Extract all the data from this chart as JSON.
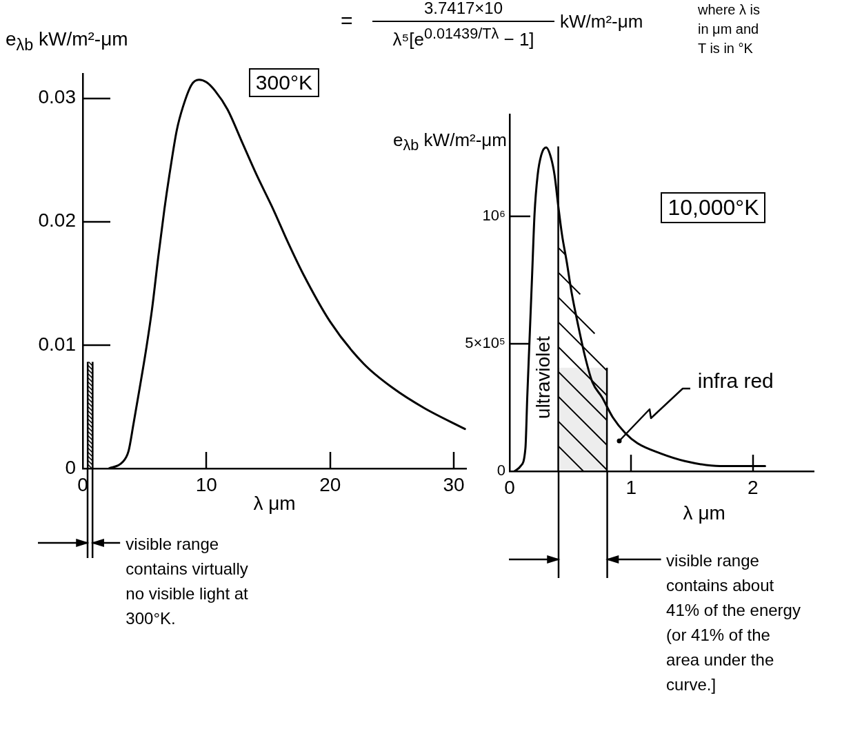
{
  "chart_data": [
    {
      "type": "line",
      "title": "300°K",
      "xlabel": "λ μm",
      "ylabel": "e$_{λb}$ kW/m²-μm",
      "x": [
        2.1,
        3.2,
        3.7,
        4.1,
        4.6,
        5.1,
        5.6,
        6.1,
        6.6,
        7.1,
        7.6,
        8.1,
        8.8,
        9.4,
        10,
        10.7,
        11.7,
        12.9,
        14.1,
        15.4,
        16.6,
        17.8,
        20,
        22.7,
        25.1,
        27.6,
        30.9
      ],
      "series": [
        {
          "color": "#000000",
          "values": [
            0,
            0.0005,
            0.0014,
            0.0036,
            0.0065,
            0.0095,
            0.0129,
            0.0171,
            0.021,
            0.0244,
            0.0274,
            0.0293,
            0.0311,
            0.0315,
            0.0313,
            0.0306,
            0.0291,
            0.0264,
            0.0237,
            0.021,
            0.0183,
            0.0158,
            0.0119,
            0.0085,
            0.0065,
            0.0049,
            0.0032
          ]
        }
      ],
      "xlim": [
        0,
        31
      ],
      "ylim": [
        0,
        0.032
      ],
      "xticks": [
        0,
        10,
        20,
        30
      ],
      "yticks": [
        0,
        0.01,
        0.02,
        0.03
      ],
      "marker": "none",
      "line_style": "solid",
      "bands": [
        {
          "axis": "x",
          "from": 0.4,
          "to": 0.8,
          "label": "visible range contains virtually no visible light at 300°K."
        }
      ],
      "ref_lines": [
        {
          "axis": "x",
          "value": 0.4
        },
        {
          "axis": "x",
          "value": 0.8
        }
      ],
      "annotations": [
        "=",
        "3.7417×10",
        "λ⁵[e$^{0.01439/Tλ}$ − 1]",
        "kW/m²-μm",
        "where λ is in μm and T is in °K"
      ]
    },
    {
      "type": "line",
      "title": "10,000°K",
      "xlabel": "λ μm",
      "ylabel": "e$_{λb}$ kW/m²-μm",
      "x": [
        0.04,
        0.09,
        0.13,
        0.145,
        0.165,
        0.185,
        0.205,
        0.23,
        0.26,
        0.3,
        0.34,
        0.37,
        0.4,
        0.43,
        0.47,
        0.51,
        0.56,
        0.62,
        0.68,
        0.76,
        0.85,
        0.95,
        1.05,
        1.24,
        1.44,
        1.73,
        1.98,
        2.1
      ],
      "series": [
        {
          "color": "#000000",
          "values": [
            0,
            20000,
            90000,
            290000,
            530000,
            770000,
            1010000,
            1160000,
            1240000,
            1270000,
            1230000,
            1160000,
            1040000,
            930000,
            820000,
            700000,
            580000,
            450000,
            350000,
            290000,
            210000,
            150000,
            110000,
            70000,
            40000,
            20000,
            20000,
            20000
          ]
        }
      ],
      "xlim": [
        0,
        2.5
      ],
      "ylim": [
        0,
        1400000
      ],
      "xticks": [
        0,
        1,
        2
      ],
      "yticks": [
        0,
        {
          "value": 500000,
          "label": "5×10⁵"
        },
        {
          "value": 1000000,
          "label": "10⁶"
        }
      ],
      "marker": "none",
      "line_style": "solid",
      "bands": [
        {
          "axis": "x",
          "from": 0.4,
          "to": 0.8,
          "label": "visible range contains about 41% of the energy (or 41% of the area under the curve.]"
        }
      ],
      "ref_lines": [
        {
          "axis": "x",
          "value": 0.4
        },
        {
          "axis": "x",
          "value": 0.8
        }
      ],
      "annotations": [
        "ultraviolet",
        {
          "text": "infra red",
          "x": 0.9,
          "y": 120000
        }
      ]
    }
  ]
}
